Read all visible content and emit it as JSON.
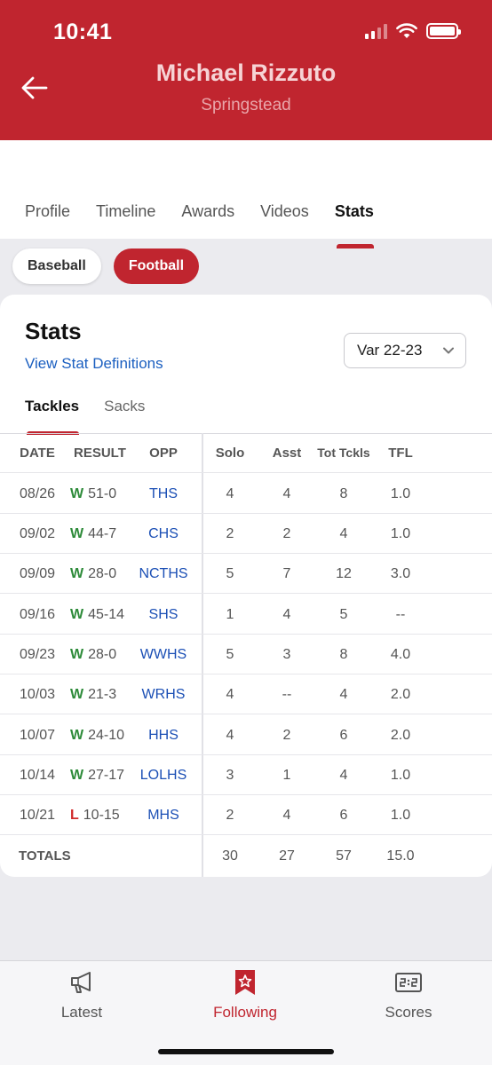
{
  "status_bar": {
    "time": "10:41"
  },
  "header": {
    "name": "Michael Rizzuto",
    "school": "Springstead"
  },
  "tabs": [
    {
      "label": "Profile",
      "active": false
    },
    {
      "label": "Timeline",
      "active": false
    },
    {
      "label": "Awards",
      "active": false
    },
    {
      "label": "Videos",
      "active": false
    },
    {
      "label": "Stats",
      "active": true
    }
  ],
  "sports": [
    {
      "label": "Baseball",
      "active": false
    },
    {
      "label": "Football",
      "active": true
    }
  ],
  "card": {
    "title": "Stats",
    "definitions_link": "View Stat Definitions",
    "season": "Var 22-23",
    "subtabs": [
      {
        "label": "Tackles",
        "active": true
      },
      {
        "label": "Sacks",
        "active": false
      }
    ]
  },
  "table": {
    "headers": {
      "date": "DATE",
      "result": "RESULT",
      "opp": "OPP",
      "solo": "Solo",
      "asst": "Asst",
      "tot": "Tot Tckls",
      "tfl": "TFL"
    },
    "rows": [
      {
        "date": "08/26",
        "wl": "W",
        "score": "51-0",
        "opp": "THS",
        "solo": "4",
        "asst": "4",
        "tot": "8",
        "tfl": "1.0"
      },
      {
        "date": "09/02",
        "wl": "W",
        "score": "44-7",
        "opp": "CHS",
        "solo": "2",
        "asst": "2",
        "tot": "4",
        "tfl": "1.0"
      },
      {
        "date": "09/09",
        "wl": "W",
        "score": "28-0",
        "opp": "NCTHS",
        "solo": "5",
        "asst": "7",
        "tot": "12",
        "tfl": "3.0"
      },
      {
        "date": "09/16",
        "wl": "W",
        "score": "45-14",
        "opp": "SHS",
        "solo": "1",
        "asst": "4",
        "tot": "5",
        "tfl": "--"
      },
      {
        "date": "09/23",
        "wl": "W",
        "score": "28-0",
        "opp": "WWHS",
        "solo": "5",
        "asst": "3",
        "tot": "8",
        "tfl": "4.0"
      },
      {
        "date": "10/03",
        "wl": "W",
        "score": "21-3",
        "opp": "WRHS",
        "solo": "4",
        "asst": "--",
        "tot": "4",
        "tfl": "2.0"
      },
      {
        "date": "10/07",
        "wl": "W",
        "score": "24-10",
        "opp": "HHS",
        "solo": "4",
        "asst": "2",
        "tot": "6",
        "tfl": "2.0"
      },
      {
        "date": "10/14",
        "wl": "W",
        "score": "27-17",
        "opp": "LOLHS",
        "solo": "3",
        "asst": "1",
        "tot": "4",
        "tfl": "1.0"
      },
      {
        "date": "10/21",
        "wl": "L",
        "score": "10-15",
        "opp": "MHS",
        "solo": "2",
        "asst": "4",
        "tot": "6",
        "tfl": "1.0"
      }
    ],
    "totals": {
      "label": "TOTALS",
      "solo": "30",
      "asst": "27",
      "tot": "57",
      "tfl": "15.0"
    }
  },
  "bottom_nav": [
    {
      "label": "Latest",
      "icon": "megaphone-icon",
      "active": false
    },
    {
      "label": "Following",
      "icon": "bookmark-star-icon",
      "active": true
    },
    {
      "label": "Scores",
      "icon": "scoreboard-icon",
      "active": false
    }
  ],
  "colors": {
    "brand": "#c0252f",
    "win": "#2e8b3a",
    "loss": "#d02a2a",
    "link": "#1b5fc0"
  }
}
